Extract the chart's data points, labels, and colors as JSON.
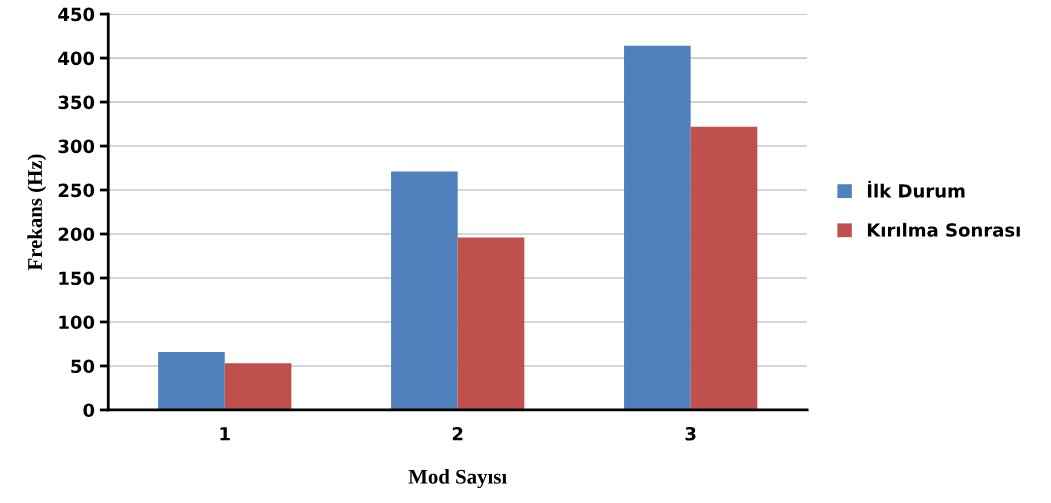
{
  "chart_data": {
    "type": "bar",
    "xlabel": "Mod Sayısı",
    "ylabel": "Frekans (Hz)",
    "categories": [
      "1",
      "2",
      "3"
    ],
    "series": [
      {
        "name": "İlk Durum",
        "color": "#4f81bd",
        "values": [
          66,
          271,
          414
        ]
      },
      {
        "name": "Kırılma Sonrası",
        "color": "#c0504d",
        "values": [
          53,
          196,
          322
        ]
      }
    ],
    "ylim": [
      0,
      450
    ],
    "yticks": [
      0,
      50,
      100,
      150,
      200,
      250,
      300,
      350,
      400,
      450
    ],
    "grid": "y",
    "legend": "right"
  }
}
